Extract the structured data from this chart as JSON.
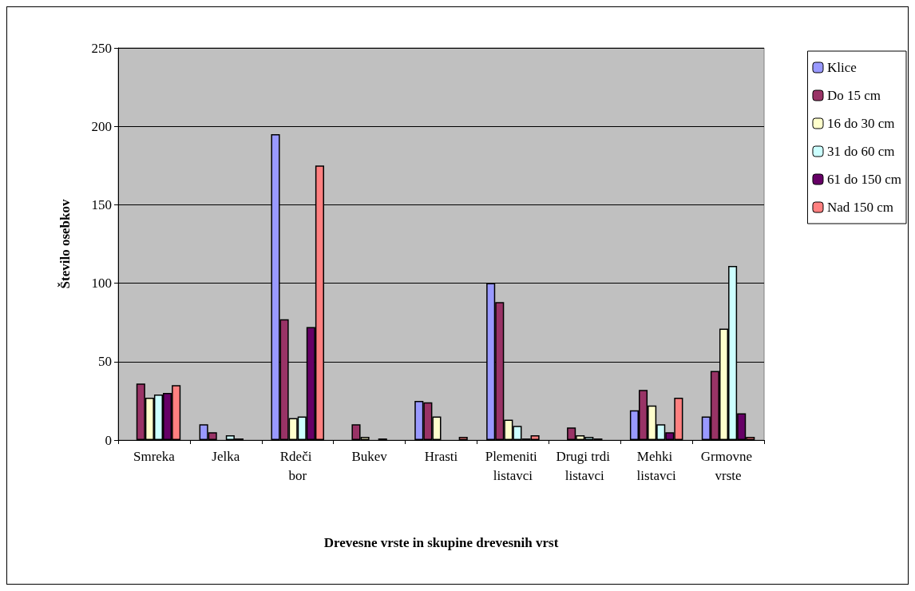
{
  "chart_data": {
    "type": "bar",
    "xlabel": "Drevesne vrste in skupine drevesnih vrst",
    "ylabel": "Število osebkov",
    "categories": [
      "Smreka",
      "Jelka",
      "Rdeči bor",
      "Bukev",
      "Hrasti",
      "Plemeniti listavci",
      "Drugi trdi listavci",
      "Mehki listavci",
      "Grmovne vrste"
    ],
    "series": [
      {
        "name": "Klice",
        "color": "#9999ff",
        "values": [
          null,
          10,
          195,
          null,
          25,
          100,
          null,
          19,
          15
        ]
      },
      {
        "name": "Do 15 cm",
        "color": "#993366",
        "values": [
          36,
          5,
          77,
          10,
          24,
          88,
          8,
          32,
          44
        ]
      },
      {
        "name": "16 do 30 cm",
        "color": "#ffffcc",
        "values": [
          27,
          null,
          14,
          2,
          15,
          13,
          3,
          22,
          71
        ]
      },
      {
        "name": "31 do 60 cm",
        "color": "#ccffff",
        "values": [
          29,
          3,
          15,
          null,
          null,
          9,
          2,
          10,
          111
        ]
      },
      {
        "name": "61 do 150 cm",
        "color": "#660066",
        "values": [
          30,
          1,
          72,
          1,
          null,
          1,
          1,
          5,
          17
        ]
      },
      {
        "name": "Nad 150 cm",
        "color": "#ff8080",
        "values": [
          35,
          null,
          175,
          null,
          2,
          3,
          null,
          27,
          2
        ]
      }
    ],
    "ylim": [
      0,
      250
    ],
    "yticks": [
      0,
      50,
      100,
      150,
      200,
      250
    ],
    "grid": "y",
    "legend": "right"
  }
}
